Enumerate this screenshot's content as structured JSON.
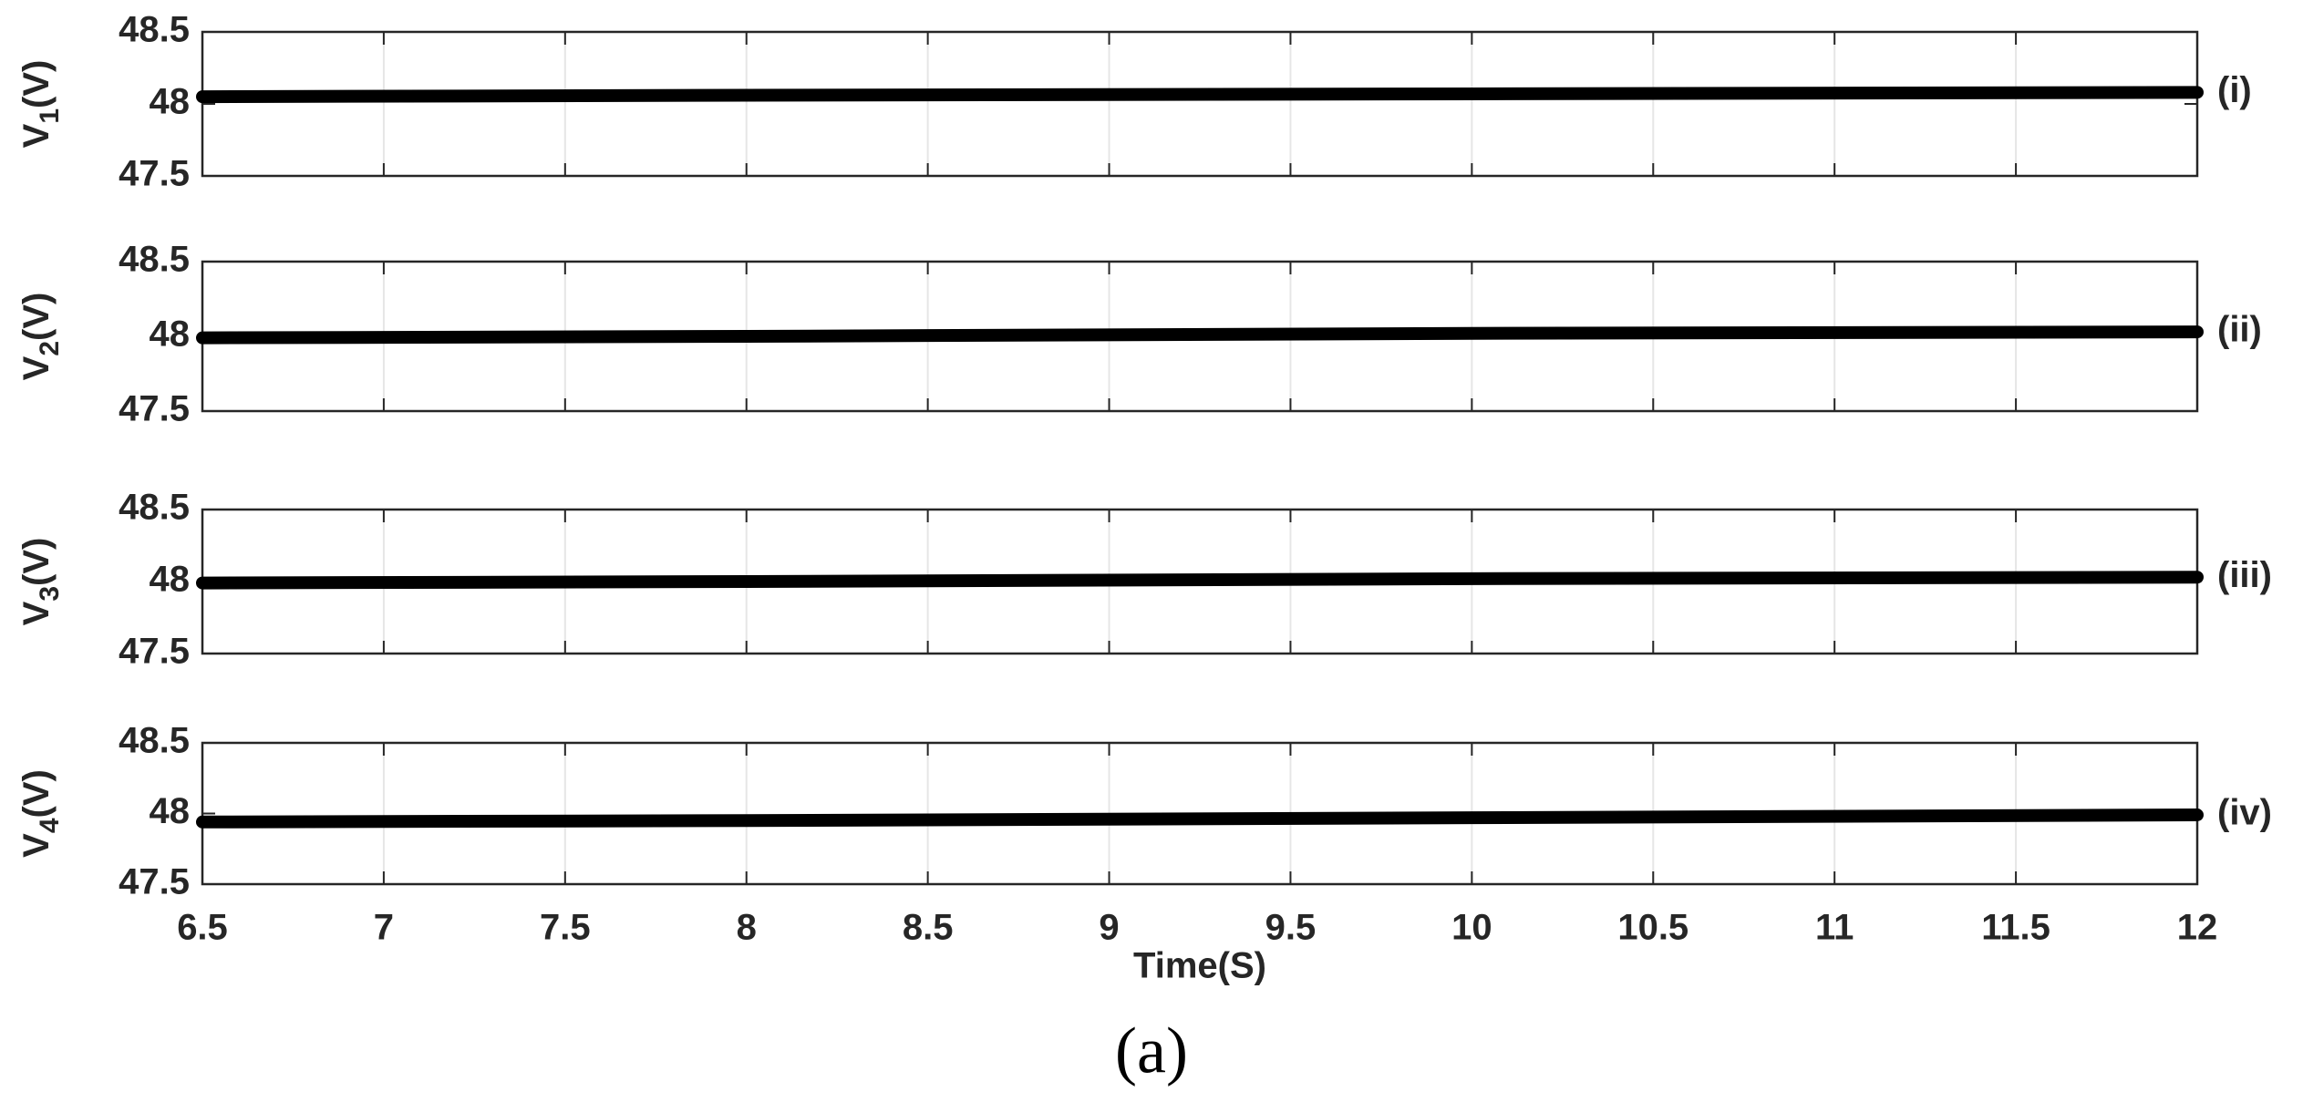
{
  "caption": "(a)",
  "chart_data": [
    {
      "type": "line",
      "ylabel_symbol": "V",
      "ylabel_subscript": "1",
      "ylabel_unit": "(V)",
      "panel_label": "(i)",
      "x": [
        6.5,
        8,
        10,
        12
      ],
      "series": [
        {
          "color": "#000000",
          "values": [
            48.05,
            48.06,
            48.07,
            48.08
          ]
        }
      ],
      "xlim": [
        6.5,
        12
      ],
      "xticks": [
        6.5,
        7,
        7.5,
        8,
        8.5,
        9,
        9.5,
        10,
        10.5,
        11,
        11.5,
        12
      ],
      "ylim": [
        47.5,
        48.5
      ],
      "yticks": [
        47.5,
        48,
        48.5
      ],
      "xgrid": true
    },
    {
      "type": "line",
      "ylabel_symbol": "V",
      "ylabel_subscript": "2",
      "ylabel_unit": "(V)",
      "panel_label": "(ii)",
      "x": [
        6.5,
        8,
        10,
        12
      ],
      "series": [
        {
          "color": "#000000",
          "values": [
            47.99,
            48.0,
            48.02,
            48.03
          ]
        }
      ],
      "xlim": [
        6.5,
        12
      ],
      "xticks": [
        6.5,
        7,
        7.5,
        8,
        8.5,
        9,
        9.5,
        10,
        10.5,
        11,
        11.5,
        12
      ],
      "ylim": [
        47.5,
        48.5
      ],
      "yticks": [
        47.5,
        48,
        48.5
      ],
      "xgrid": true
    },
    {
      "type": "line",
      "ylabel_symbol": "V",
      "ylabel_subscript": "3",
      "ylabel_unit": "(V)",
      "panel_label": "(iii)",
      "x": [
        6.5,
        8,
        10,
        12
      ],
      "series": [
        {
          "color": "#000000",
          "values": [
            47.99,
            48.0,
            48.02,
            48.03
          ]
        }
      ],
      "xlim": [
        6.5,
        12
      ],
      "xticks": [
        6.5,
        7,
        7.5,
        8,
        8.5,
        9,
        9.5,
        10,
        10.5,
        11,
        11.5,
        12
      ],
      "ylim": [
        47.5,
        48.5
      ],
      "yticks": [
        47.5,
        48,
        48.5
      ],
      "xgrid": true
    },
    {
      "type": "line",
      "ylabel_symbol": "V",
      "ylabel_subscript": "4",
      "ylabel_unit": "(V)",
      "panel_label": "(iv)",
      "x": [
        6.5,
        8,
        10,
        12
      ],
      "series": [
        {
          "color": "#000000",
          "values": [
            47.94,
            47.95,
            47.97,
            47.99
          ]
        }
      ],
      "xlim": [
        6.5,
        12
      ],
      "xticks": [
        6.5,
        7,
        7.5,
        8,
        8.5,
        9,
        9.5,
        10,
        10.5,
        11,
        11.5,
        12
      ],
      "ylim": [
        47.5,
        48.5
      ],
      "yticks": [
        47.5,
        48,
        48.5
      ],
      "xgrid": true,
      "xlabel": "Time(S)"
    }
  ]
}
